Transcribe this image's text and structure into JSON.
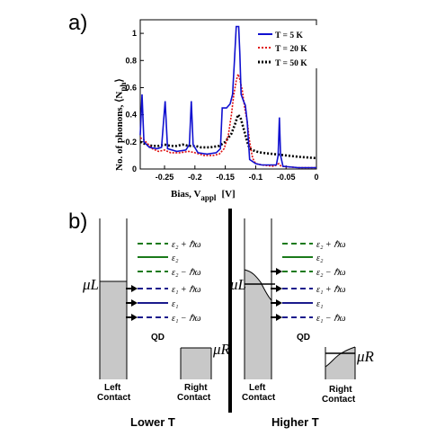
{
  "panel_a": {
    "label": "a)",
    "chart_data": {
      "type": "line",
      "xlabel_main": "Bias, V",
      "xlabel_sub": "appl",
      "xlabel_unit": "[V]",
      "ylabel_main": "No. of phonons, ⟨N",
      "ylabel_sub": "ph",
      "ylabel_close": "⟩",
      "xlim": [
        -0.29,
        0
      ],
      "ylim": [
        0,
        1.1
      ],
      "x_ticks": [
        -0.25,
        -0.2,
        -0.15,
        -0.1,
        -0.05,
        0
      ],
      "x_tick_labels": [
        "-0.25",
        "-0.2",
        "-0.15",
        "-0.1",
        "-0.05",
        "0"
      ],
      "y_ticks": [
        0,
        0.2,
        0.4,
        0.6,
        0.8,
        1
      ],
      "y_tick_labels": [
        "0",
        "0.2",
        "0.4",
        "0.6",
        "0.8",
        "1"
      ],
      "legend_position": "top-right",
      "series": [
        {
          "name": "T = 5 K",
          "color": "#1010d0",
          "style": "solid",
          "points": [
            [
              -0.29,
              0.25
            ],
            [
              -0.287,
              0.55
            ],
            [
              -0.284,
              0.2
            ],
            [
              -0.275,
              0.16
            ],
            [
              -0.262,
              0.15
            ],
            [
              -0.255,
              0.16
            ],
            [
              -0.249,
              0.5
            ],
            [
              -0.245,
              0.15
            ],
            [
              -0.23,
              0.13
            ],
            [
              -0.215,
              0.14
            ],
            [
              -0.209,
              0.18
            ],
            [
              -0.206,
              0.5
            ],
            [
              -0.203,
              0.18
            ],
            [
              -0.195,
              0.12
            ],
            [
              -0.18,
              0.11
            ],
            [
              -0.165,
              0.12
            ],
            [
              -0.158,
              0.15
            ],
            [
              -0.155,
              0.45
            ],
            [
              -0.148,
              0.45
            ],
            [
              -0.142,
              0.48
            ],
            [
              -0.138,
              0.55
            ],
            [
              -0.135,
              0.8
            ],
            [
              -0.132,
              1.05
            ],
            [
              -0.128,
              1.05
            ],
            [
              -0.126,
              0.85
            ],
            [
              -0.124,
              0.55
            ],
            [
              -0.12,
              0.5
            ],
            [
              -0.117,
              0.47
            ],
            [
              -0.114,
              0.35
            ],
            [
              -0.11,
              0.07
            ],
            [
              -0.1,
              0.04
            ],
            [
              -0.09,
              0.03
            ],
            [
              -0.075,
              0.03
            ],
            [
              -0.066,
              0.03
            ],
            [
              -0.063,
              0.1
            ],
            [
              -0.061,
              0.38
            ],
            [
              -0.059,
              0.1
            ],
            [
              -0.055,
              0.02
            ],
            [
              -0.03,
              0.01
            ],
            [
              0,
              0.01
            ]
          ]
        },
        {
          "name": "T = 20 K",
          "color": "#e01010",
          "style": "dotted",
          "points": [
            [
              -0.29,
              0.23
            ],
            [
              -0.285,
              0.22
            ],
            [
              -0.27,
              0.15
            ],
            [
              -0.26,
              0.13
            ],
            [
              -0.25,
              0.14
            ],
            [
              -0.24,
              0.12
            ],
            [
              -0.225,
              0.12
            ],
            [
              -0.21,
              0.13
            ],
            [
              -0.2,
              0.12
            ],
            [
              -0.185,
              0.1
            ],
            [
              -0.17,
              0.1
            ],
            [
              -0.16,
              0.11
            ],
            [
              -0.152,
              0.15
            ],
            [
              -0.145,
              0.25
            ],
            [
              -0.14,
              0.4
            ],
            [
              -0.136,
              0.55
            ],
            [
              -0.132,
              0.65
            ],
            [
              -0.129,
              0.7
            ],
            [
              -0.126,
              0.66
            ],
            [
              -0.122,
              0.58
            ],
            [
              -0.118,
              0.45
            ],
            [
              -0.114,
              0.35
            ],
            [
              -0.11,
              0.2
            ],
            [
              -0.105,
              0.08
            ],
            [
              -0.1,
              0.04
            ],
            [
              -0.09,
              0.03
            ],
            [
              -0.07,
              0.02
            ],
            [
              -0.062,
              0.04
            ],
            [
              -0.058,
              0.02
            ],
            [
              -0.03,
              0.01
            ],
            [
              0,
              0.01
            ]
          ]
        },
        {
          "name": "T = 50 K",
          "color": "#000000",
          "style": "dotted",
          "points": [
            [
              -0.29,
              0.2
            ],
            [
              -0.28,
              0.18
            ],
            [
              -0.27,
              0.17
            ],
            [
              -0.26,
              0.17
            ],
            [
              -0.25,
              0.18
            ],
            [
              -0.24,
              0.17
            ],
            [
              -0.23,
              0.17
            ],
            [
              -0.22,
              0.18
            ],
            [
              -0.21,
              0.17
            ],
            [
              -0.2,
              0.17
            ],
            [
              -0.19,
              0.16
            ],
            [
              -0.175,
              0.16
            ],
            [
              -0.16,
              0.17
            ],
            [
              -0.15,
              0.2
            ],
            [
              -0.14,
              0.26
            ],
            [
              -0.134,
              0.33
            ],
            [
              -0.129,
              0.4
            ],
            [
              -0.125,
              0.38
            ],
            [
              -0.12,
              0.3
            ],
            [
              -0.114,
              0.2
            ],
            [
              -0.11,
              0.15
            ],
            [
              -0.1,
              0.13
            ],
            [
              -0.09,
              0.12
            ],
            [
              -0.07,
              0.11
            ],
            [
              -0.05,
              0.1
            ],
            [
              -0.03,
              0.09
            ],
            [
              0,
              0.08
            ]
          ]
        }
      ]
    }
  },
  "panel_b": {
    "label": "b)",
    "levels": {
      "eps2_plus": "ε₂ + ℏω",
      "eps2": "ε₂",
      "eps2_minus": "ε₂ − ℏω",
      "eps1_plus": "ε₁ + ℏω",
      "eps1": "ε₁",
      "eps1_minus": "ε₁ − ℏω"
    },
    "mu_L": "μL",
    "mu_R": "μR",
    "qd": "QD",
    "left_contact_1": "Left",
    "left_contact_2": "Contact",
    "right_contact_1": "Right",
    "right_contact_2": "Contact",
    "lower_t": "Lower T",
    "higher_t": "Higher T",
    "colors": {
      "green": "#1a7a1a",
      "blue": "#1a1a8c",
      "gray": "#c8c8c8"
    }
  }
}
